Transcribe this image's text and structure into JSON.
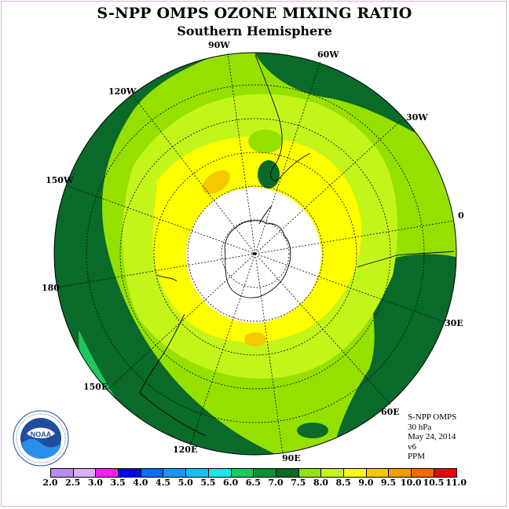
{
  "title": "S-NPP OMPS OZONE MIXING RATIO",
  "subtitle": "Southern Hemisphere",
  "longitude_labels": {
    "w90": "90W",
    "w60": "60W",
    "w30": "30W",
    "w120": "120W",
    "w150": "150W",
    "lon180": "180",
    "lon0": "0",
    "e30": "30E",
    "e60": "60E",
    "e90": "90E",
    "e120": "120E",
    "e150": "150E"
  },
  "info": {
    "instrument": "S-NPP OMPS",
    "level": "30 hPa",
    "date": "May 24, 2014",
    "version": "v6",
    "units": "PPM"
  },
  "logo": {
    "text": "NOAA",
    "icon": "noaa-logo"
  },
  "colorbar": {
    "ticks": [
      "2.0",
      "2.5",
      "3.0",
      "3.5",
      "4.0",
      "4.5",
      "5.0",
      "5.5",
      "6.0",
      "6.5",
      "7.0",
      "7.5",
      "8.0",
      "8.5",
      "9.0",
      "9.5",
      "10.0",
      "10.5",
      "11.0"
    ],
    "colors": [
      "#b98cf0",
      "#d9b0f5",
      "#ee22ee",
      "#0000ff",
      "#0c6cf0",
      "#1e96f0",
      "#20bdf0",
      "#1ee6e6",
      "#1fc85a",
      "#0f8f36",
      "#0a6a2a",
      "#94e01b",
      "#c3f51a",
      "#ffff00",
      "#f5c800",
      "#f29d00",
      "#f06a0a",
      "#ee0000",
      "#8b5a2b"
    ]
  }
}
